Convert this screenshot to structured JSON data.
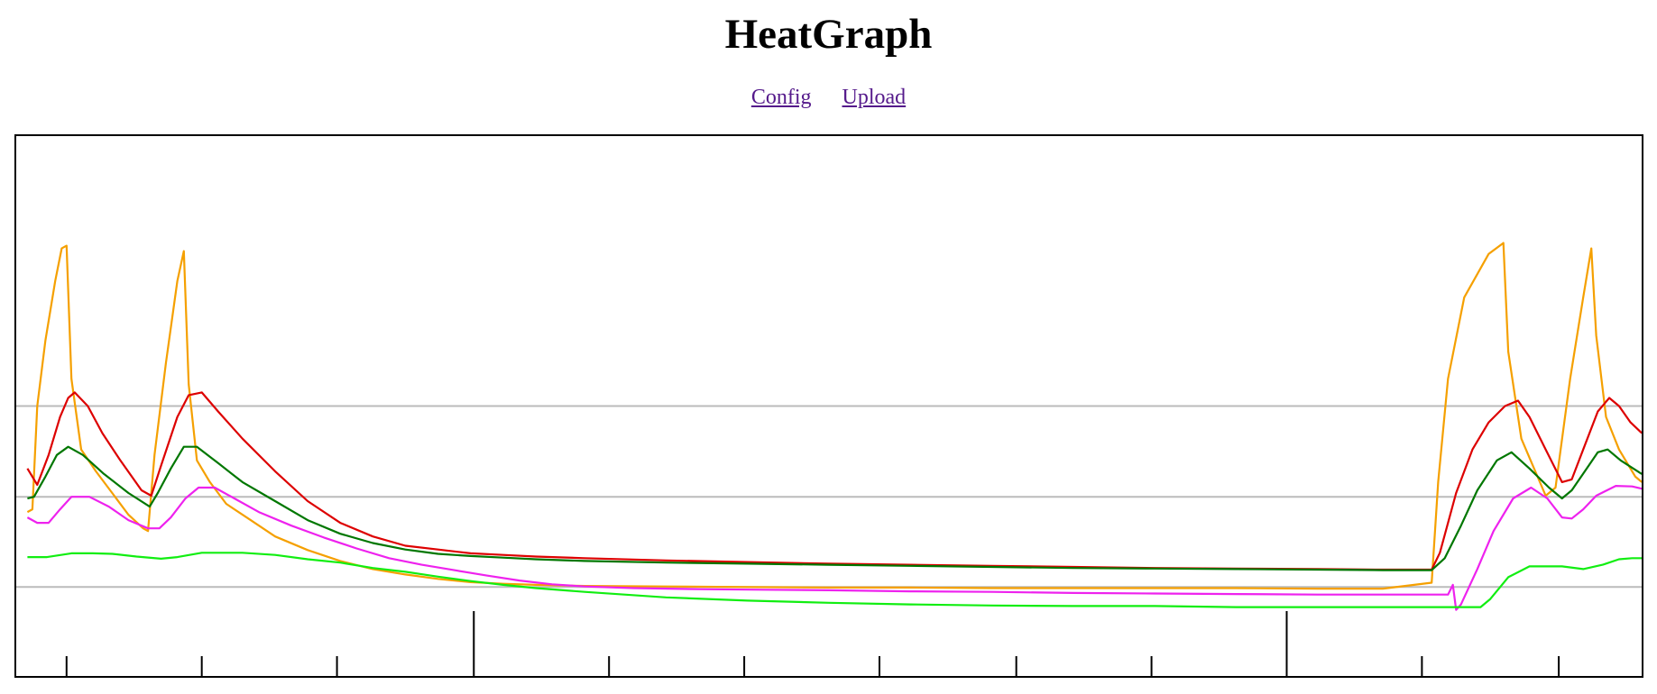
{
  "header": {
    "title": "HeatGraph"
  },
  "nav": {
    "config_label": "Config",
    "upload_label": "Upload"
  },
  "colors": {
    "red": "#dd0000",
    "darkgreen": "#007700",
    "orange": "#f5a000",
    "magenta": "#ee22ee",
    "green": "#11ee11",
    "gridline": "#bbbbbb",
    "frame": "#000000"
  },
  "chart_data": {
    "type": "line",
    "title": "",
    "xlabel": "",
    "ylabel": "",
    "xlim": [
      0,
      100
    ],
    "ylim": [
      0,
      100
    ],
    "grid": "horizontal",
    "gridlines_y": [
      16.7,
      33.3,
      50
    ],
    "tick_x": [
      3.2,
      11.5,
      19.8,
      28.2,
      36.5,
      44.8,
      53.1,
      61.5,
      69.8,
      78.1,
      86.4,
      94.8
    ],
    "tick_major": [
      28.2,
      78.1
    ],
    "series": [
      {
        "color": "#f5a000",
        "points": [
          [
            0.8,
            30.5
          ],
          [
            1.1,
            31
          ],
          [
            1.4,
            50
          ],
          [
            1.9,
            62
          ],
          [
            2.5,
            73
          ],
          [
            2.9,
            79
          ],
          [
            3.2,
            79.5
          ],
          [
            3.5,
            55
          ],
          [
            4.1,
            42
          ],
          [
            5,
            38
          ],
          [
            6,
            34
          ],
          [
            7,
            30
          ],
          [
            7.9,
            27.5
          ],
          [
            8.2,
            27
          ],
          [
            8.6,
            41
          ],
          [
            9.3,
            58
          ],
          [
            10,
            73
          ],
          [
            10.4,
            78.5
          ],
          [
            10.7,
            54
          ],
          [
            11.2,
            40
          ],
          [
            12,
            36
          ],
          [
            13,
            32
          ],
          [
            14.5,
            29
          ],
          [
            16,
            26
          ],
          [
            18,
            23.5
          ],
          [
            20,
            21.5
          ],
          [
            22,
            20
          ],
          [
            24,
            19
          ],
          [
            26,
            18.2
          ],
          [
            28,
            17.6
          ],
          [
            30,
            17.3
          ],
          [
            32,
            17.1
          ],
          [
            35,
            16.9
          ],
          [
            40,
            16.8
          ],
          [
            45,
            16.7
          ],
          [
            50,
            16.6
          ],
          [
            55,
            16.6
          ],
          [
            60,
            16.5
          ],
          [
            65,
            16.5
          ],
          [
            70,
            16.5
          ],
          [
            75,
            16.5
          ],
          [
            80,
            16.4
          ],
          [
            84,
            16.4
          ],
          [
            87,
            17.5
          ],
          [
            87.4,
            36
          ],
          [
            88,
            55
          ],
          [
            89,
            70
          ],
          [
            90.5,
            78
          ],
          [
            91.4,
            80
          ],
          [
            91.7,
            60
          ],
          [
            92.5,
            44
          ],
          [
            94,
            33.5
          ],
          [
            94.6,
            35
          ],
          [
            95.5,
            55
          ],
          [
            96.3,
            70
          ],
          [
            96.8,
            79
          ],
          [
            97.1,
            63
          ],
          [
            97.7,
            48
          ],
          [
            98.5,
            42
          ],
          [
            99.5,
            37
          ],
          [
            99.9,
            36
          ]
        ]
      },
      {
        "color": "#dd0000",
        "points": [
          [
            0.8,
            38.5
          ],
          [
            1.4,
            35.5
          ],
          [
            2.1,
            41
          ],
          [
            2.8,
            48
          ],
          [
            3.3,
            51.5
          ],
          [
            3.7,
            52.5
          ],
          [
            4.5,
            50
          ],
          [
            5.4,
            45
          ],
          [
            6.5,
            40
          ],
          [
            7.8,
            34.5
          ],
          [
            8.4,
            33.5
          ],
          [
            9,
            39
          ],
          [
            10,
            48
          ],
          [
            10.7,
            52
          ],
          [
            11.5,
            52.5
          ],
          [
            12.5,
            49
          ],
          [
            14,
            44
          ],
          [
            16,
            38
          ],
          [
            18,
            32.5
          ],
          [
            20,
            28.5
          ],
          [
            22,
            26
          ],
          [
            24,
            24.3
          ],
          [
            26,
            23.6
          ],
          [
            28,
            22.9
          ],
          [
            30,
            22.6
          ],
          [
            32,
            22.3
          ],
          [
            35,
            22
          ],
          [
            40,
            21.6
          ],
          [
            45,
            21.3
          ],
          [
            50,
            21
          ],
          [
            55,
            20.8
          ],
          [
            60,
            20.6
          ],
          [
            65,
            20.4
          ],
          [
            70,
            20.2
          ],
          [
            75,
            20.1
          ],
          [
            80,
            20
          ],
          [
            84,
            19.9
          ],
          [
            87,
            19.9
          ],
          [
            87.5,
            23
          ],
          [
            88.5,
            34
          ],
          [
            89.5,
            42
          ],
          [
            90.5,
            47
          ],
          [
            91.5,
            50
          ],
          [
            92.3,
            51
          ],
          [
            93,
            48
          ],
          [
            94,
            42
          ],
          [
            95,
            36
          ],
          [
            95.6,
            36.5
          ],
          [
            96.3,
            42
          ],
          [
            97.2,
            49
          ],
          [
            97.9,
            51.5
          ],
          [
            98.5,
            50
          ],
          [
            99.2,
            47
          ],
          [
            99.9,
            45
          ]
        ]
      },
      {
        "color": "#007700",
        "points": [
          [
            0.8,
            33
          ],
          [
            1.2,
            33.3
          ],
          [
            1.9,
            37
          ],
          [
            2.6,
            41
          ],
          [
            3.3,
            42.5
          ],
          [
            4.2,
            41
          ],
          [
            5.5,
            37.5
          ],
          [
            7,
            34
          ],
          [
            8.3,
            31.5
          ],
          [
            8.8,
            34
          ],
          [
            9.6,
            38.5
          ],
          [
            10.4,
            42.5
          ],
          [
            11.2,
            42.5
          ],
          [
            12.5,
            39.5
          ],
          [
            14,
            36
          ],
          [
            16,
            32.5
          ],
          [
            18,
            29
          ],
          [
            20,
            26.5
          ],
          [
            22,
            24.8
          ],
          [
            24,
            23.6
          ],
          [
            26,
            22.8
          ],
          [
            28,
            22.4
          ],
          [
            30,
            22.1
          ],
          [
            32,
            21.8
          ],
          [
            35,
            21.5
          ],
          [
            40,
            21.2
          ],
          [
            45,
            21
          ],
          [
            50,
            20.8
          ],
          [
            55,
            20.6
          ],
          [
            60,
            20.4
          ],
          [
            65,
            20.2
          ],
          [
            70,
            20.1
          ],
          [
            75,
            20
          ],
          [
            80,
            19.9
          ],
          [
            84,
            19.8
          ],
          [
            87,
            19.8
          ],
          [
            87.8,
            22
          ],
          [
            88.8,
            28
          ],
          [
            89.8,
            34.5
          ],
          [
            91,
            40
          ],
          [
            91.9,
            41.5
          ],
          [
            93,
            38.5
          ],
          [
            94.2,
            35
          ],
          [
            95,
            33
          ],
          [
            95.6,
            34.5
          ],
          [
            96.4,
            38
          ],
          [
            97.2,
            41.5
          ],
          [
            97.8,
            42
          ],
          [
            98.6,
            40
          ],
          [
            99.9,
            37.5
          ]
        ]
      },
      {
        "color": "#ee22ee",
        "points": [
          [
            0.8,
            29.5
          ],
          [
            1.4,
            28.5
          ],
          [
            2.1,
            28.5
          ],
          [
            2.8,
            31
          ],
          [
            3.5,
            33.3
          ],
          [
            4.6,
            33.3
          ],
          [
            5.8,
            31.5
          ],
          [
            7,
            29
          ],
          [
            8.2,
            27.5
          ],
          [
            8.9,
            27.5
          ],
          [
            9.6,
            29.5
          ],
          [
            10.5,
            33
          ],
          [
            11.3,
            35
          ],
          [
            12.3,
            35
          ],
          [
            13.5,
            33
          ],
          [
            15,
            30.5
          ],
          [
            17,
            28
          ],
          [
            19,
            25.8
          ],
          [
            21,
            23.8
          ],
          [
            23,
            22
          ],
          [
            25,
            20.8
          ],
          [
            27,
            19.8
          ],
          [
            29,
            18.8
          ],
          [
            31,
            17.9
          ],
          [
            33,
            17.2
          ],
          [
            35,
            16.8
          ],
          [
            38,
            16.5
          ],
          [
            42,
            16.3
          ],
          [
            46,
            16.2
          ],
          [
            50,
            16.1
          ],
          [
            55,
            15.9
          ],
          [
            60,
            15.8
          ],
          [
            65,
            15.6
          ],
          [
            70,
            15.5
          ],
          [
            75,
            15.4
          ],
          [
            80,
            15.3
          ],
          [
            85,
            15.3
          ],
          [
            88,
            15.3
          ],
          [
            88.3,
            17.1
          ],
          [
            88.5,
            12.5
          ],
          [
            88.8,
            13.5
          ],
          [
            89.8,
            20
          ],
          [
            90.8,
            27
          ],
          [
            92,
            33
          ],
          [
            93.1,
            35
          ],
          [
            94.1,
            33
          ],
          [
            95,
            29.5
          ],
          [
            95.6,
            29.3
          ],
          [
            96.3,
            31
          ],
          [
            97.1,
            33.5
          ],
          [
            98.3,
            35.3
          ],
          [
            99.3,
            35.2
          ],
          [
            99.9,
            34.8
          ]
        ]
      },
      {
        "color": "#11ee11",
        "points": [
          [
            0.8,
            22.2
          ],
          [
            2,
            22.2
          ],
          [
            3.5,
            22.9
          ],
          [
            4.8,
            22.9
          ],
          [
            6,
            22.8
          ],
          [
            7.5,
            22.3
          ],
          [
            9,
            21.9
          ],
          [
            10,
            22.2
          ],
          [
            11.5,
            23
          ],
          [
            14,
            23
          ],
          [
            16,
            22.6
          ],
          [
            18,
            21.8
          ],
          [
            20,
            21.2
          ],
          [
            22,
            20.2
          ],
          [
            24,
            19.5
          ],
          [
            26,
            18.6
          ],
          [
            28,
            17.8
          ],
          [
            30,
            17.1
          ],
          [
            32,
            16.5
          ],
          [
            35,
            15.8
          ],
          [
            40,
            14.8
          ],
          [
            45,
            14.2
          ],
          [
            50,
            13.8
          ],
          [
            55,
            13.5
          ],
          [
            60,
            13.3
          ],
          [
            65,
            13.2
          ],
          [
            70,
            13.2
          ],
          [
            75,
            13
          ],
          [
            80,
            13
          ],
          [
            84,
            13
          ],
          [
            87,
            13
          ],
          [
            90,
            13
          ],
          [
            90.6,
            14.5
          ],
          [
            91.7,
            18.5
          ],
          [
            93,
            20.5
          ],
          [
            95,
            20.5
          ],
          [
            96.3,
            20
          ],
          [
            97.5,
            20.8
          ],
          [
            98.5,
            21.8
          ],
          [
            99.3,
            22
          ],
          [
            99.9,
            22
          ]
        ]
      }
    ]
  }
}
